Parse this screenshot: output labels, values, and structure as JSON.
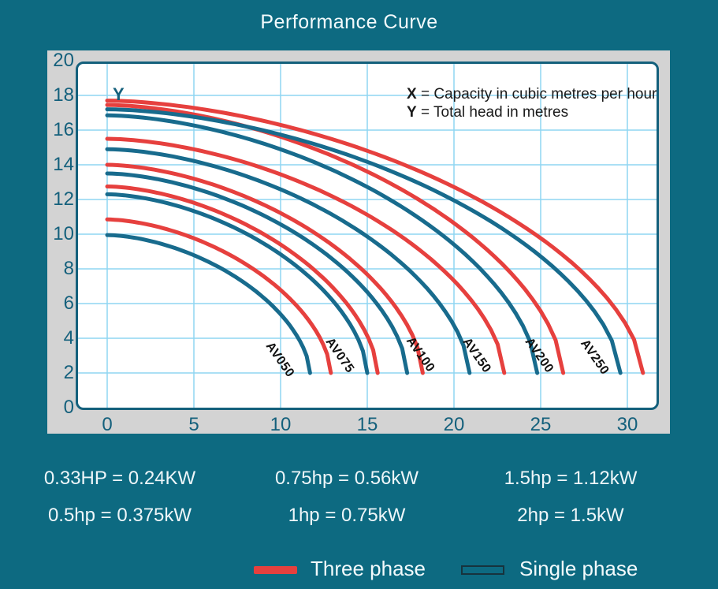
{
  "page": {
    "title": "Performance Curve"
  },
  "chart_data": {
    "type": "line",
    "title": "Performance Curve",
    "x_axis": {
      "label": "X",
      "description": "Capacity in cubic metres per hour",
      "ticks": [
        0,
        5,
        10,
        15,
        20,
        25,
        30
      ],
      "range": [
        0,
        31.6
      ],
      "grid": true
    },
    "y_axis": {
      "label": "Y",
      "description": "Total head in metres",
      "ticks": [
        0,
        2,
        4,
        6,
        8,
        10,
        12,
        14,
        16,
        18,
        20
      ],
      "range": [
        0,
        20
      ],
      "grid": true
    },
    "note": [
      {
        "sym": "X",
        "text": "= Capacity in cubic metres per hour"
      },
      {
        "sym": "Y",
        "text": "= Total head in metres"
      }
    ],
    "end_head": 2,
    "curve_exponent": 1.7,
    "series": [
      {
        "model": "AV050",
        "three_phase": {
          "start_head": 10.85,
          "max_capacity": 12.9
        },
        "single_phase": {
          "start_head": 9.95,
          "max_capacity": 11.7
        },
        "label_pos": [
          9.95,
          2.75
        ],
        "label_angle": 55
      },
      {
        "model": "AV075",
        "three_phase": {
          "start_head": 12.75,
          "max_capacity": 15.6
        },
        "single_phase": {
          "start_head": 12.3,
          "max_capacity": 15.0
        },
        "label_pos": [
          13.4,
          3.0
        ],
        "label_angle": 55
      },
      {
        "model": "AV100",
        "three_phase": {
          "start_head": 14.0,
          "max_capacity": 18.2
        },
        "single_phase": {
          "start_head": 13.5,
          "max_capacity": 17.3
        },
        "label_pos": [
          18.05,
          3.05
        ],
        "label_angle": 55
      },
      {
        "model": "AV150",
        "three_phase": {
          "start_head": 15.5,
          "max_capacity": 22.9
        },
        "single_phase": {
          "start_head": 14.9,
          "max_capacity": 20.9
        },
        "label_pos": [
          21.3,
          3.0
        ],
        "label_angle": 55
      },
      {
        "model": "AV200",
        "three_phase": {
          "start_head": 17.45,
          "max_capacity": 26.3
        },
        "single_phase": {
          "start_head": 16.85,
          "max_capacity": 24.8
        },
        "label_pos": [
          24.9,
          3.0
        ],
        "label_angle": 55
      },
      {
        "model": "AV250",
        "three_phase": {
          "start_head": 17.7,
          "max_capacity": 30.9
        },
        "single_phase": {
          "start_head": 17.2,
          "max_capacity": 29.6
        },
        "label_pos": [
          28.1,
          2.9
        ],
        "label_angle": 55
      }
    ],
    "colors": {
      "three_phase": "#e6403e",
      "single_phase": "#186b8d",
      "grid": "#8fd6f2",
      "frame": "#14607c",
      "tick_text": "#14607c",
      "curve_label_text": "#101010",
      "note_text": "#1a1a1a",
      "page_bg": "#0d6a81",
      "panel_bg": "#d3d3d3"
    },
    "legend_position": "bottom"
  },
  "conversions": {
    "columns": [
      [
        "0.33HP = 0.24KW",
        "0.5hp = 0.375kW"
      ],
      [
        "0.75hp = 0.56kW",
        "1hp = 0.75kW"
      ],
      [
        "1.5hp = 1.12kW",
        "2hp = 1.5kW"
      ]
    ]
  },
  "legend": {
    "three_phase": "Three phase",
    "single_phase": "Single phase"
  }
}
